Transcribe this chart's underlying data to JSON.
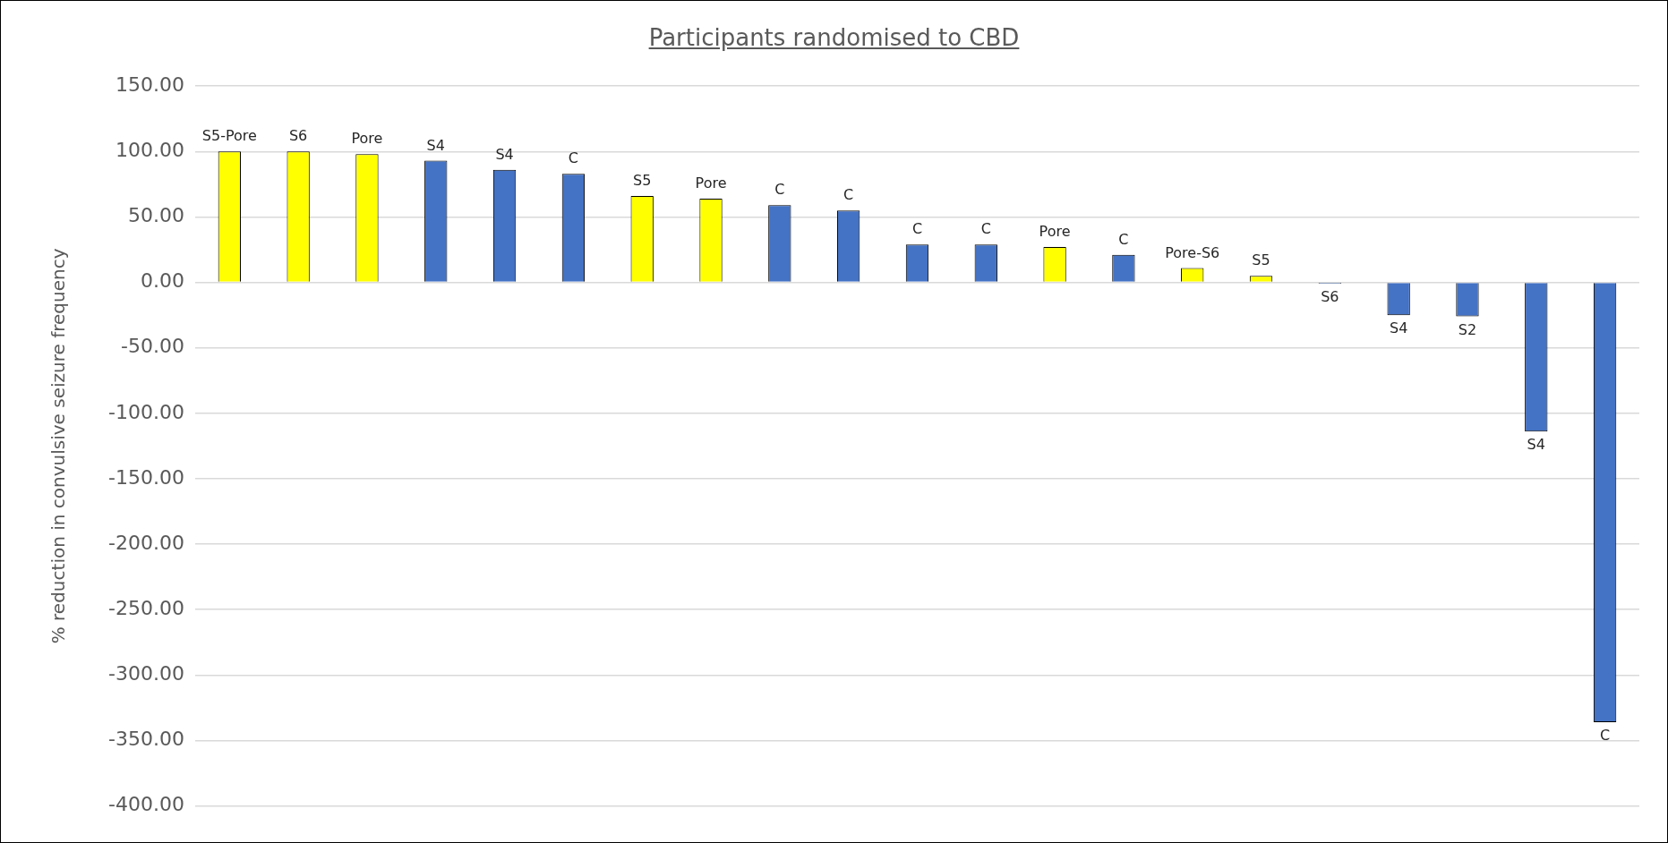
{
  "chart_data": {
    "type": "bar",
    "title": "Participants randomised to CBD",
    "ylabel": "% reduction in convulsive seizure frequency",
    "categories": [
      null,
      null,
      null,
      null,
      null,
      null,
      null,
      null,
      null,
      null,
      null,
      null,
      null,
      null,
      null,
      null,
      null,
      null,
      null,
      null,
      null
    ],
    "values": [
      100,
      100,
      98,
      93,
      86,
      83,
      66,
      64,
      59,
      55,
      29,
      29,
      27,
      21,
      11,
      5,
      -1,
      -25,
      -26,
      -114,
      -336
    ],
    "colors": [
      "#ffff00",
      "#ffff00",
      "#ffff00",
      "#4472c4",
      "#4472c4",
      "#4472c4",
      "#ffff00",
      "#ffff00",
      "#4472c4",
      "#4472c4",
      "#4472c4",
      "#4472c4",
      "#ffff00",
      "#4472c4",
      "#ffff00",
      "#ffff00",
      "#4472c4",
      "#4472c4",
      "#4472c4",
      "#4472c4",
      "#4472c4"
    ],
    "value_labels": [
      "S5-Pore",
      "S6",
      "Pore",
      "S4",
      "S4",
      "C",
      "S5",
      "Pore",
      "C",
      "C",
      "C",
      "C",
      "Pore",
      "C",
      "Pore-S6",
      "S5",
      "S6",
      "S4",
      "S2",
      "S4",
      "C"
    ],
    "ylim": [
      -400,
      150
    ],
    "yticks": [
      {
        "value": 150,
        "label": "150.00"
      },
      {
        "value": 100,
        "label": "100.00"
      },
      {
        "value": 50,
        "label": "50.00"
      },
      {
        "value": 0,
        "label": "0.00"
      },
      {
        "value": -50,
        "label": "-50.00"
      },
      {
        "value": -100,
        "label": "-100.00"
      },
      {
        "value": -150,
        "label": "-150.00"
      },
      {
        "value": -200,
        "label": "-200.00"
      },
      {
        "value": -250,
        "label": "-250.00"
      },
      {
        "value": -300,
        "label": "-300.00"
      },
      {
        "value": -350,
        "label": "-350.00"
      },
      {
        "value": -400,
        "label": "-400.00"
      }
    ],
    "grid": "y",
    "legend": false
  }
}
